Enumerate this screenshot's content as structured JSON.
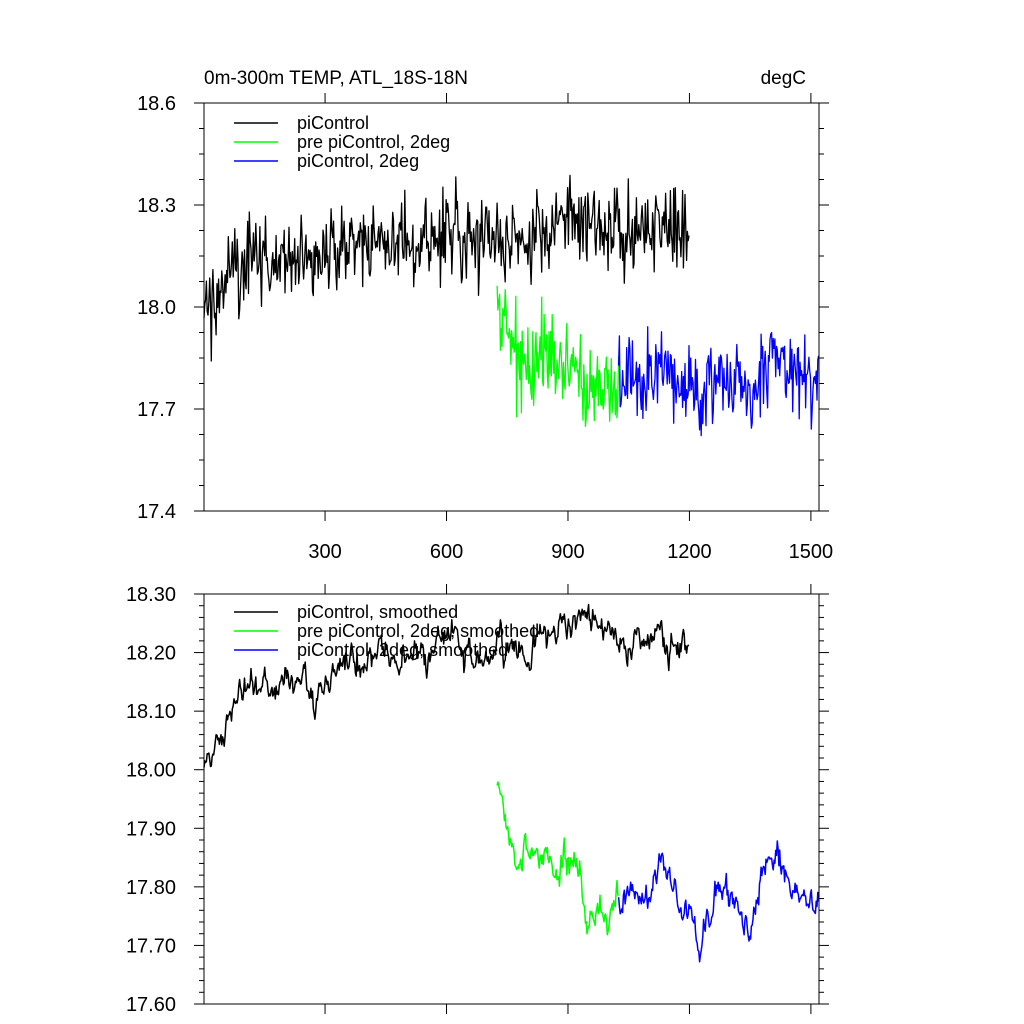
{
  "chart_data": [
    {
      "type": "line",
      "title_left": "0m-300m TEMP, ATL_18S-18N",
      "title_right": "degC",
      "xlim": [
        1,
        1520
      ],
      "ylim": [
        17.4,
        18.6
      ],
      "xticks": [
        300,
        600,
        900,
        1200,
        1500
      ],
      "xtick_labels": [
        "300",
        "600",
        "900",
        "1200",
        "1500"
      ],
      "yticks": [
        17.4,
        17.7,
        18.0,
        18.3,
        18.6
      ],
      "ytick_labels": [
        "17.4",
        "17.7",
        "18.0",
        "18.3",
        "18.6"
      ],
      "legend": "top-left",
      "series": [
        {
          "name": "piControl",
          "color": "#000000",
          "x_start": 1,
          "x_end": 1200,
          "step": 25,
          "values": [
            18.02,
            18.03,
            18.06,
            18.12,
            18.14,
            18.13,
            18.15,
            18.1,
            18.16,
            18.14,
            18.16,
            18.12,
            18.16,
            18.15,
            18.19,
            18.19,
            18.17,
            18.2,
            18.2,
            18.19,
            18.18,
            18.21,
            18.19,
            18.21,
            18.23,
            18.22,
            18.19,
            18.18,
            18.19,
            18.21,
            18.2,
            18.21,
            18.17,
            18.24,
            18.21,
            18.26,
            18.25,
            18.26,
            18.27,
            18.24,
            18.23,
            18.23,
            18.2,
            18.24,
            18.21,
            18.25,
            18.21,
            18.22,
            18.2
          ]
        },
        {
          "name": "pre piControl, 2deg",
          "color": "#00ff00",
          "x_start": 725,
          "x_end": 1025,
          "step": 25,
          "values": [
            17.98,
            17.9,
            17.86,
            17.84,
            17.86,
            17.85,
            17.82,
            17.85,
            17.82,
            17.74,
            17.76,
            17.73,
            17.79
          ]
        },
        {
          "name": "piControl, 2deg",
          "color": "#0000ff",
          "x_start": 1025,
          "x_end": 1520,
          "step": 25,
          "values": [
            17.78,
            17.8,
            17.79,
            17.77,
            17.85,
            17.82,
            17.76,
            17.78,
            17.7,
            17.75,
            17.8,
            17.79,
            17.76,
            17.72,
            17.82,
            17.86,
            17.84,
            17.8,
            17.79,
            17.76,
            17.78
          ]
        }
      ]
    },
    {
      "type": "line",
      "xlim": [
        1,
        1520
      ],
      "ylim": [
        17.6,
        18.3
      ],
      "xticks": [
        300,
        600,
        900,
        1200,
        1500
      ],
      "yticks": [
        17.6,
        17.7,
        17.8,
        17.9,
        18.0,
        18.1,
        18.2,
        18.3
      ],
      "ytick_labels": [
        "17.60",
        "17.70",
        "17.80",
        "17.90",
        "18.00",
        "18.10",
        "18.20",
        "18.30"
      ],
      "legend": "top-left",
      "series": [
        {
          "name": "piControl, smoothed",
          "color": "#000000",
          "x_start": 1,
          "x_end": 1200,
          "step": 25,
          "values": [
            18.02,
            18.03,
            18.06,
            18.12,
            18.14,
            18.13,
            18.15,
            18.1,
            18.16,
            18.14,
            18.16,
            18.12,
            18.16,
            18.15,
            18.19,
            18.19,
            18.17,
            18.2,
            18.2,
            18.19,
            18.18,
            18.21,
            18.19,
            18.21,
            18.23,
            18.22,
            18.19,
            18.18,
            18.19,
            18.21,
            18.2,
            18.21,
            18.17,
            18.24,
            18.21,
            18.26,
            18.25,
            18.26,
            18.27,
            18.24,
            18.23,
            18.23,
            18.2,
            18.24,
            18.21,
            18.25,
            18.21,
            18.22,
            18.2
          ]
        },
        {
          "name": "pre piControl, 2deg, smoothed",
          "color": "#00ff00",
          "x_start": 725,
          "x_end": 1025,
          "step": 25,
          "values": [
            17.98,
            17.9,
            17.86,
            17.84,
            17.86,
            17.85,
            17.82,
            17.85,
            17.82,
            17.74,
            17.76,
            17.73,
            17.79
          ]
        },
        {
          "name": "piControl, 2deg, smoothed",
          "color": "#0000ff",
          "x_start": 1025,
          "x_end": 1520,
          "step": 25,
          "values": [
            17.78,
            17.8,
            17.79,
            17.77,
            17.85,
            17.82,
            17.76,
            17.78,
            17.7,
            17.75,
            17.8,
            17.79,
            17.76,
            17.72,
            17.82,
            17.86,
            17.84,
            17.8,
            17.79,
            17.76,
            17.78
          ]
        }
      ]
    }
  ]
}
